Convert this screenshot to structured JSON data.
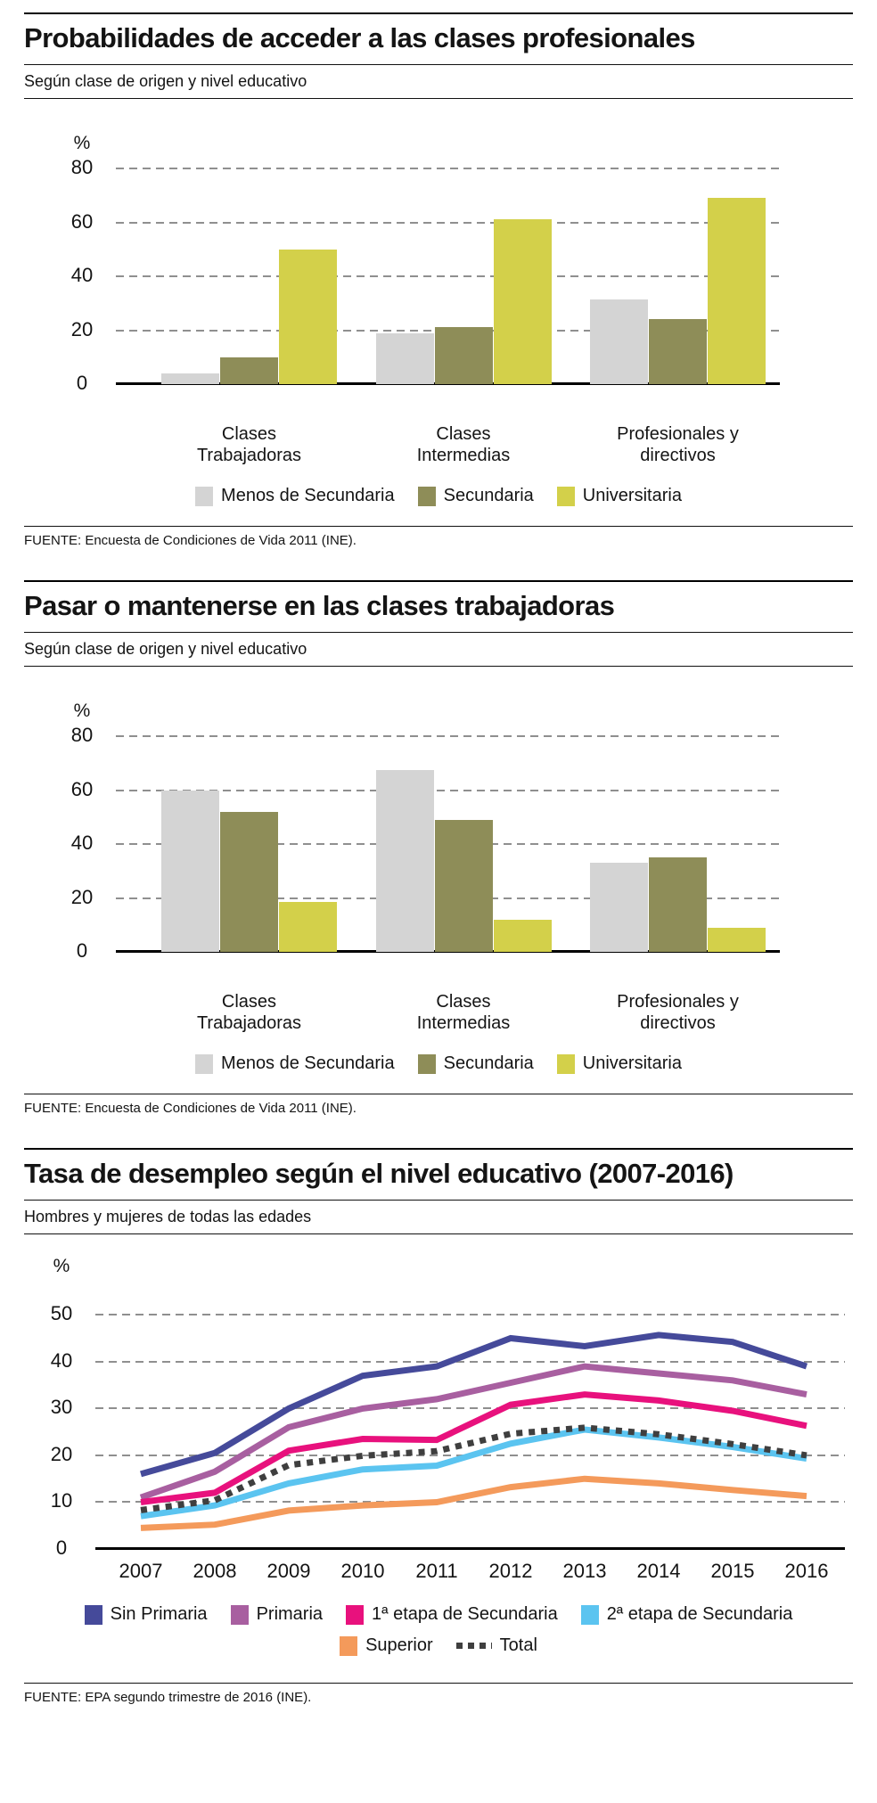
{
  "colors": {
    "bar_gray": "#d4d4d4",
    "bar_olive": "#8e8d58",
    "bar_yellow": "#d3d04a",
    "line_navy": "#454a9a",
    "line_purple": "#a85fa0",
    "line_magenta": "#e8117d",
    "line_lightblue": "#5bc4f0",
    "line_orange": "#f49a5b",
    "line_total": "#3f3f3f",
    "gridline": "#8f8f8f"
  },
  "sections": [
    {
      "title": "Probabilidades de acceder a las clases profesionales",
      "subtitle": "Según clase de origen y nivel educativo",
      "source": "FUENTE: Encuesta de Condiciones de Vida 2011 (INE)."
    },
    {
      "title": "Pasar o mantenerse en las clases trabajadoras",
      "subtitle": "Según clase de origen y nivel educativo",
      "source": "FUENTE: Encuesta de Condiciones de Vida 2011 (INE)."
    },
    {
      "title": "Tasa de desempleo según el nivel educativo (2007-2016)",
      "subtitle": "Hombres y mujeres de todas las edades",
      "source": "FUENTE: EPA segundo trimestre de 2016 (INE)."
    }
  ],
  "chart_data": [
    {
      "type": "bar",
      "title": "Probabilidades de acceder a las clases profesionales",
      "ylabel": "%",
      "ylim": [
        0,
        80
      ],
      "yticks": [
        0,
        20,
        40,
        60,
        80
      ],
      "grid": true,
      "legend_position": "bottom",
      "categories": [
        "Clases Trabajadoras",
        "Clases Intermedias",
        "Profesionales y directivos"
      ],
      "series": [
        {
          "name": "Menos de Secundaria",
          "color": "#d4d4d4",
          "values": [
            4,
            19,
            31.5
          ]
        },
        {
          "name": "Secundaria",
          "color": "#8e8d58",
          "values": [
            10,
            21,
            24
          ]
        },
        {
          "name": "Universitaria",
          "color": "#d3d04a",
          "values": [
            50,
            61,
            69
          ]
        }
      ]
    },
    {
      "type": "bar",
      "title": "Pasar o mantenerse en las clases trabajadoras",
      "ylabel": "%",
      "ylim": [
        0,
        80
      ],
      "yticks": [
        0,
        20,
        40,
        60,
        80
      ],
      "grid": true,
      "legend_position": "bottom",
      "categories": [
        "Clases Trabajadoras",
        "Clases Intermedias",
        "Profesionales y directivos"
      ],
      "series": [
        {
          "name": "Menos de Secundaria",
          "color": "#d4d4d4",
          "values": [
            60,
            67.5,
            33
          ]
        },
        {
          "name": "Secundaria",
          "color": "#8e8d58",
          "values": [
            52,
            49,
            35
          ]
        },
        {
          "name": "Universitaria",
          "color": "#d3d04a",
          "values": [
            18.5,
            12,
            9
          ]
        }
      ]
    },
    {
      "type": "line",
      "title": "Tasa de desempleo según el nivel educativo (2007-2016)",
      "ylabel": "%",
      "ylim": [
        0,
        55
      ],
      "yticks": [
        0,
        10,
        20,
        30,
        40,
        50
      ],
      "grid": true,
      "legend_position": "bottom",
      "x": [
        2007,
        2008,
        2009,
        2010,
        2011,
        2012,
        2013,
        2014,
        2015,
        2016
      ],
      "series": [
        {
          "name": "Sin Primaria",
          "color": "#454a9a",
          "values": [
            16,
            20.5,
            30,
            37,
            39,
            45,
            43.3,
            45.7,
            44.2,
            39
          ]
        },
        {
          "name": "Primaria",
          "color": "#a85fa0",
          "values": [
            11,
            16.5,
            26,
            30,
            32,
            35.5,
            39,
            37.5,
            36,
            33
          ]
        },
        {
          "name": "1ª etapa de Secundaria",
          "color": "#e8117d",
          "values": [
            10,
            12,
            21,
            23.5,
            23.3,
            30.8,
            33,
            31.7,
            29.5,
            26.3
          ]
        },
        {
          "name": "2ª etapa de Secundaria",
          "color": "#5bc4f0",
          "values": [
            7,
            9.3,
            14,
            17,
            17.8,
            22.5,
            25.5,
            23.8,
            21.8,
            19.3
          ]
        },
        {
          "name": "Superior",
          "color": "#f49a5b",
          "values": [
            4.5,
            5.2,
            8.2,
            9.3,
            10,
            13.2,
            15,
            14,
            12.6,
            11.3
          ]
        },
        {
          "name": "Total",
          "color": "#3f3f3f",
          "dashed": true,
          "values": [
            8.3,
            10.4,
            17.9,
            19.9,
            20.9,
            24.6,
            25.9,
            24.5,
            22.4,
            20
          ]
        }
      ],
      "legend_rows": [
        [
          0,
          1,
          2,
          3
        ],
        [
          4,
          5
        ]
      ]
    }
  ]
}
